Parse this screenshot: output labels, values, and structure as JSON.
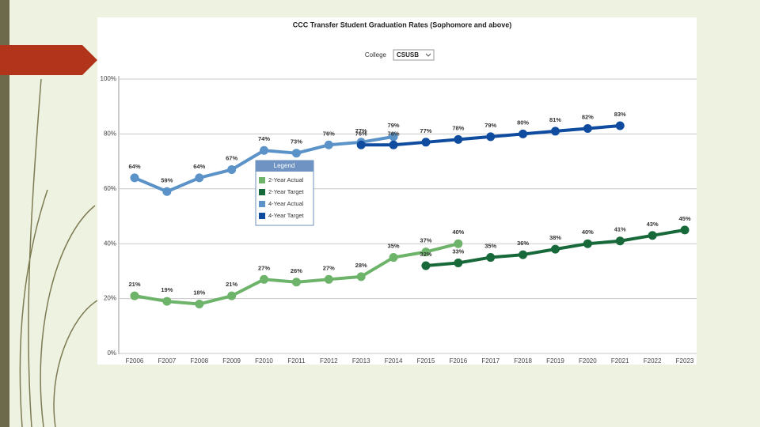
{
  "chart_data": {
    "type": "line",
    "title": "CCC Transfer Student Graduation Rates (Sophomore and above)",
    "filter_label": "College",
    "filter_value": "CSUSB",
    "legend_title": "Legend",
    "categories": [
      "F2006",
      "F2007",
      "F2008",
      "F2009",
      "F2010",
      "F2011",
      "F2012",
      "F2013",
      "F2014",
      "F2015",
      "F2016",
      "F2017",
      "F2018",
      "F2019",
      "F2020",
      "F2021",
      "F2022",
      "F2023"
    ],
    "ylim": [
      0,
      100
    ],
    "yticks": [
      {
        "value": 0,
        "label": "0%"
      },
      {
        "value": 20,
        "label": "20%"
      },
      {
        "value": 40,
        "label": "40%"
      },
      {
        "value": 60,
        "label": "60%"
      },
      {
        "value": 80,
        "label": "80%"
      },
      {
        "value": 100,
        "label": "100%"
      }
    ],
    "grid": true,
    "series": [
      {
        "name": "2-Year Actual",
        "color": "#6db46a",
        "values": [
          21,
          19,
          18,
          21,
          27,
          26,
          27,
          28,
          35,
          37,
          40,
          null,
          null,
          null,
          null,
          null,
          null,
          null
        ],
        "value_labels": [
          "21%",
          "19%",
          "18%",
          "21%",
          "27%",
          "26%",
          "27%",
          "28%",
          "35%",
          "37%",
          "40%",
          null,
          null,
          null,
          null,
          null,
          null,
          null
        ]
      },
      {
        "name": "2-Year Target",
        "color": "#17693a",
        "values": [
          null,
          null,
          null,
          null,
          null,
          null,
          null,
          null,
          null,
          32,
          33,
          35,
          36,
          38,
          40,
          41,
          43,
          45
        ],
        "value_labels": [
          null,
          null,
          null,
          null,
          null,
          null,
          null,
          null,
          null,
          "32%",
          "33%",
          "35%",
          "36%",
          "38%",
          "40%",
          "41%",
          "43%",
          "45%"
        ]
      },
      {
        "name": "4-Year Actual",
        "color": "#5b93c8",
        "values": [
          64,
          59,
          64,
          67,
          74,
          73,
          76,
          77,
          79,
          null,
          null,
          null,
          null,
          null,
          null,
          null,
          null,
          null
        ],
        "value_labels": [
          "64%",
          "59%",
          "64%",
          "67%",
          "74%",
          "73%",
          "76%",
          "77%",
          "79%",
          null,
          null,
          null,
          null,
          null,
          null,
          null,
          null,
          null
        ]
      },
      {
        "name": "4-Year Target",
        "color": "#0f4c9f",
        "values": [
          null,
          null,
          null,
          null,
          null,
          null,
          null,
          76,
          76,
          77,
          78,
          79,
          80,
          81,
          82,
          83,
          null,
          null
        ],
        "value_labels": [
          null,
          null,
          null,
          null,
          null,
          null,
          null,
          "76%",
          "76%",
          "77%",
          "78%",
          "79%",
          "80%",
          "81%",
          "82%",
          "83%",
          null,
          null
        ]
      }
    ]
  }
}
